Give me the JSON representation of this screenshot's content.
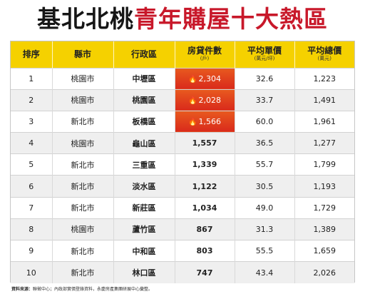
{
  "title": {
    "part_black": "基北北桃",
    "part_red": "青年購屋十大熱區"
  },
  "table": {
    "headers": [
      {
        "label": "排序",
        "sub": ""
      },
      {
        "label": "縣市",
        "sub": ""
      },
      {
        "label": "行政區",
        "sub": ""
      },
      {
        "label": "房貸件數",
        "sub": "(戶)"
      },
      {
        "label": "平均單價",
        "sub": "(萬元/坪)"
      },
      {
        "label": "平均總價",
        "sub": "(萬元)"
      }
    ],
    "rows": [
      {
        "rank": "1",
        "city": "桃園市",
        "district": "中壢區",
        "cases": "2,304",
        "unit_price": "32.6",
        "total_price": "1,223",
        "hot": true
      },
      {
        "rank": "2",
        "city": "桃園市",
        "district": "桃園區",
        "cases": "2,028",
        "unit_price": "33.7",
        "total_price": "1,491",
        "hot": true
      },
      {
        "rank": "3",
        "city": "新北市",
        "district": "板橋區",
        "cases": "1,566",
        "unit_price": "60.0",
        "total_price": "1,961",
        "hot": true
      },
      {
        "rank": "4",
        "city": "桃園市",
        "district": "龜山區",
        "cases": "1,557",
        "unit_price": "36.5",
        "total_price": "1,277",
        "hot": false
      },
      {
        "rank": "5",
        "city": "新北市",
        "district": "三重區",
        "cases": "1,339",
        "unit_price": "55.7",
        "total_price": "1,799",
        "hot": false
      },
      {
        "rank": "6",
        "city": "新北市",
        "district": "淡水區",
        "cases": "1,122",
        "unit_price": "30.5",
        "total_price": "1,193",
        "hot": false
      },
      {
        "rank": "7",
        "city": "新北市",
        "district": "新莊區",
        "cases": "1,034",
        "unit_price": "49.0",
        "total_price": "1,729",
        "hot": false
      },
      {
        "rank": "8",
        "city": "桃園市",
        "district": "蘆竹區",
        "cases": "867",
        "unit_price": "31.3",
        "total_price": "1,389",
        "hot": false
      },
      {
        "rank": "9",
        "city": "新北市",
        "district": "中和區",
        "cases": "803",
        "unit_price": "55.5",
        "total_price": "1,659",
        "hot": false
      },
      {
        "rank": "10",
        "city": "新北市",
        "district": "林口區",
        "cases": "747",
        "unit_price": "43.4",
        "total_price": "2,026",
        "hot": false
      }
    ]
  },
  "colors": {
    "header_bg": "#f5d100",
    "title_red": "#c8182a",
    "hot_cell": "#d92a1c"
  },
  "icons": {
    "hot": "flame-icon"
  },
  "footer": {
    "label": "資料來源：",
    "text": "聯徵中心；內政部實價登錄資料，永慶房產集團研展中心彙整。"
  }
}
